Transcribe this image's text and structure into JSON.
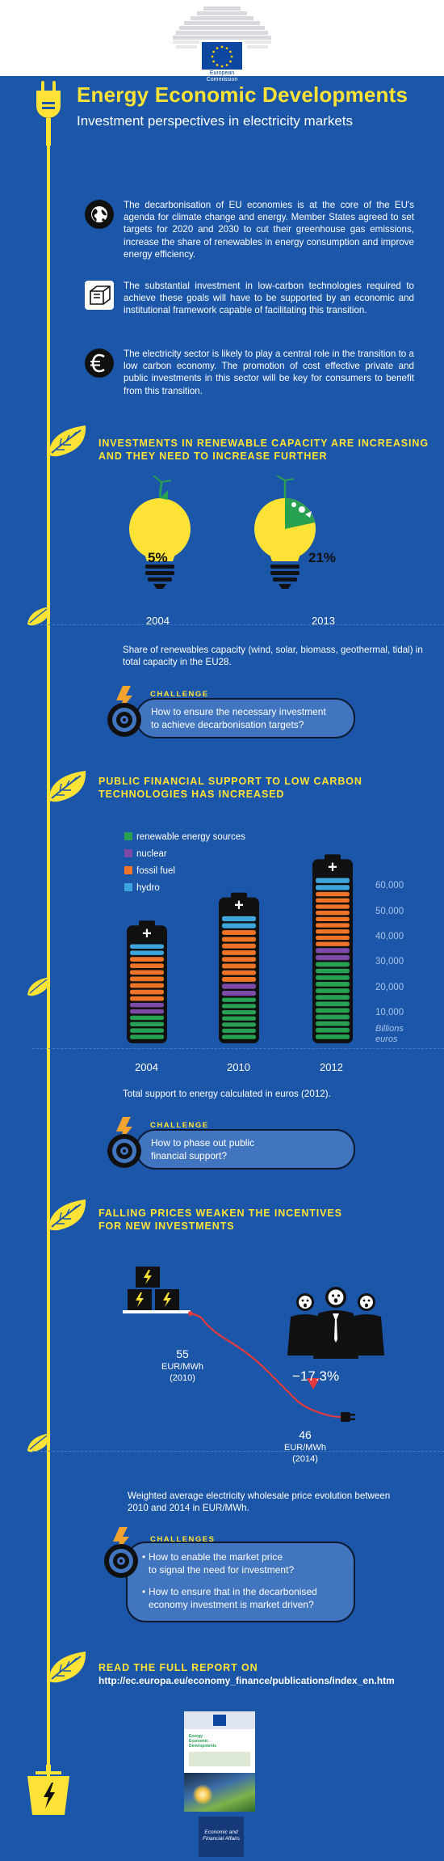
{
  "header": {
    "logo_line1": "European",
    "logo_line2": "Commission"
  },
  "title": "Energy Economic Developments",
  "subtitle": "Investment perspectives in electricity markets",
  "intro": [
    {
      "icon": "globe-icon",
      "text": "The decarbonisation of EU economies is at the core of the EU's agenda for climate change and energy. Member States agreed to set targets for 2020 and 2030 to cut their greenhouse gas emissions, increase the share of renewables in energy consumption and improve energy efficiency."
    },
    {
      "icon": "cube-icon",
      "text": "The substantial investment in low-carbon technologies required to achieve these goals will have to be supported by an economic and institutional framework capable of facilitating this transition."
    },
    {
      "icon": "euro-icon",
      "text": "The electricity sector is likely to play a central role in the transition to a low carbon economy. The promotion of cost effective private and public investments in this sector will be key for consumers to benefit from this transition."
    }
  ],
  "section1": {
    "heading_line1": "Investments in renewable capacity are increasing",
    "heading_line2": "and they need to increase further",
    "bulb1_value": "5%",
    "bulb1_year": "2004",
    "bulb2_value": "21%",
    "bulb2_year": "2013",
    "caption": "Share of renewables capacity (wind, solar, biomass, geothermal, tidal) in total capacity in the EU28.",
    "challenge_label": "CHALLENGE",
    "challenge_line1": "How to ensure the necessary investment",
    "challenge_line2": "to achieve decarbonisation targets?"
  },
  "section2": {
    "heading_line1": "Public financial support to low carbon",
    "heading_line2": "technologies has increased",
    "caption": "Total support to energy calculated in euros (2012).",
    "challenge_label": "CHALLENGE",
    "challenge_line1": "How to phase out public",
    "challenge_line2": "financial support?"
  },
  "chart_data": {
    "type": "bar",
    "stacked": true,
    "categories": [
      "2004",
      "2010",
      "2012"
    ],
    "series": [
      {
        "name": "renewable energy sources",
        "color": "#27a052",
        "values": [
          10000,
          17000,
          31000
        ]
      },
      {
        "name": "nuclear",
        "color": "#7d4aa8",
        "values": [
          5000,
          5500,
          5500
        ]
      },
      {
        "name": "fossil fuel",
        "color": "#ef7427",
        "values": [
          18000,
          21000,
          22000
        ]
      },
      {
        "name": "hydro",
        "color": "#3ea4dc",
        "values": [
          5000,
          5500,
          5500
        ]
      }
    ],
    "yticks": [
      "60,000",
      "50,000",
      "40,000",
      "30,000",
      "20,000",
      "10,000"
    ],
    "ylabel_line1": "Billions",
    "ylabel_line2": "euros",
    "ylim": [
      0,
      65000
    ],
    "legend": "top-left"
  },
  "section3": {
    "heading_line1": "Falling prices weaken the incentives",
    "heading_line2": "for new investments",
    "price1_value": "55",
    "price1_unit": "EUR/MWh",
    "price1_year": "(2010)",
    "price2_value": "46",
    "price2_unit": "EUR/MWh",
    "price2_year": "(2014)",
    "change": "−17.3%",
    "caption": "Weighted average electricity wholesale price evolution between 2010 and 2014 in EUR/MWh.",
    "challenge_label": "CHALLENGES",
    "challenge_item1_line1": "How to enable the market price",
    "challenge_item1_line2": "to signal the need for investment?",
    "challenge_item2_line1": "How to ensure that in the decarbonised",
    "challenge_item2_line2": "economy investment is market driven?"
  },
  "footer": {
    "read_label": "Read the full report on",
    "url": "http://ec.europa.eu/economy_finance/publications/index_en.htm",
    "cover_title_line1": "Energy",
    "cover_title_line2": "Economic",
    "cover_title_line3": "Developments",
    "dg_line1": "Economic and",
    "dg_line2": "Financial Affairs"
  },
  "colors": {
    "background": "#1c56a8",
    "accent": "#ffe236",
    "renewable": "#27a052",
    "nuclear": "#7d4aa8",
    "fossil": "#ef7427",
    "hydro": "#3ea4dc"
  }
}
